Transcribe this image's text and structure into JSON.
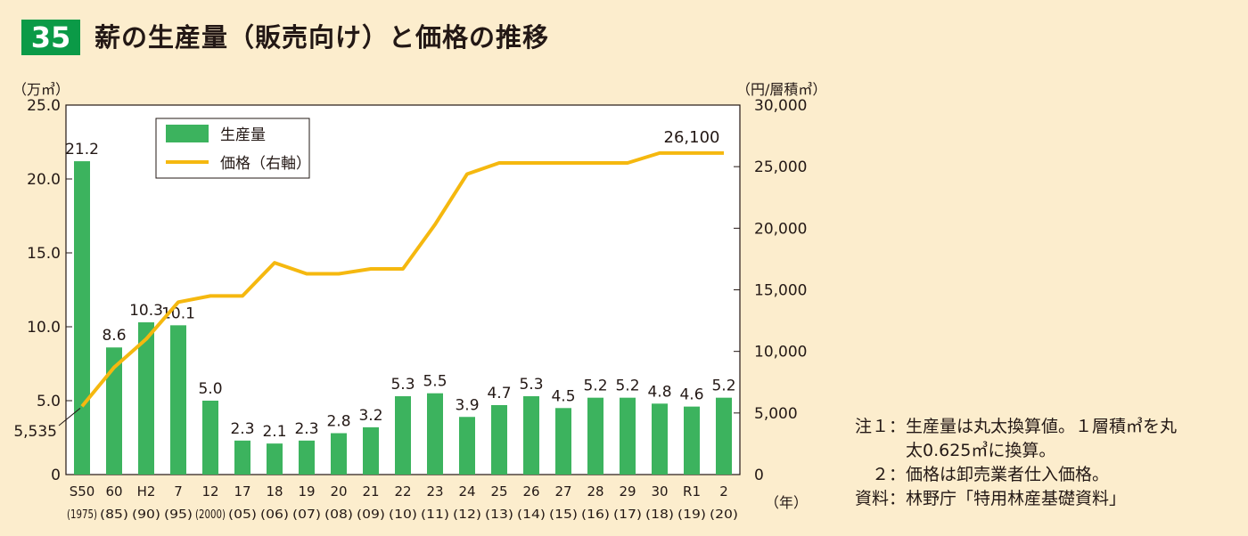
{
  "figure": {
    "number": "35",
    "title": "薪の生産量（販売向け）と価格の推移"
  },
  "chart_data": {
    "type": "bar",
    "categories": [
      "S50",
      "60",
      "H2",
      "7",
      "12",
      "17",
      "18",
      "19",
      "20",
      "21",
      "22",
      "23",
      "24",
      "25",
      "26",
      "27",
      "28",
      "29",
      "30",
      "R1",
      "2"
    ],
    "category_years": [
      "(1975)",
      "(85)",
      "(90)",
      "(95)",
      "(2000)",
      "(05)",
      "(06)",
      "(07)",
      "(08)",
      "(09)",
      "(10)",
      "(11)",
      "(12)",
      "(13)",
      "(14)",
      "(15)",
      "(16)",
      "(17)",
      "(18)",
      "(19)",
      "(20)"
    ],
    "series": [
      {
        "name": "生産量",
        "type": "bar",
        "axis": "left",
        "color": "#3cb35e",
        "values": [
          21.2,
          8.6,
          10.3,
          10.1,
          5.0,
          2.3,
          2.1,
          2.3,
          2.8,
          3.2,
          5.3,
          5.5,
          3.9,
          4.7,
          5.3,
          4.5,
          5.2,
          5.2,
          4.8,
          4.6,
          5.2
        ],
        "labels": [
          "21.2",
          "8.6",
          "10.3",
          "10.1",
          "5.0",
          "2.3",
          "2.1",
          "2.3",
          "2.8",
          "3.2",
          "5.3",
          "5.5",
          "3.9",
          "4.7",
          "5.3",
          "4.5",
          "5.2",
          "5.2",
          "4.8",
          "4.6",
          "5.2"
        ]
      },
      {
        "name": "価格（右軸）",
        "type": "line",
        "axis": "right",
        "color": "#f5b80f",
        "values": [
          5535,
          8700,
          11000,
          14000,
          14500,
          14500,
          17200,
          16300,
          16300,
          16700,
          16700,
          20300,
          24400,
          25300,
          25300,
          25300,
          25300,
          25300,
          26100,
          26100,
          26100
        ],
        "labels": {
          "0": "5,535",
          "19": "26,100"
        }
      }
    ],
    "y_left": {
      "unit": "（万㎥）",
      "ylim": [
        0,
        25
      ],
      "ticks": [
        0,
        5,
        10,
        15,
        20,
        25
      ],
      "tick_labels": [
        "0",
        "5.0",
        "10.0",
        "15.0",
        "20.0",
        "25.0"
      ]
    },
    "y_right": {
      "unit": "（円/層積㎥）",
      "ylim": [
        0,
        30000
      ],
      "ticks": [
        0,
        5000,
        10000,
        15000,
        20000,
        25000,
        30000
      ],
      "tick_labels": [
        "0",
        "5,000",
        "10,000",
        "15,000",
        "20,000",
        "25,000",
        "30,000"
      ]
    },
    "x_unit": "（年）",
    "legend_position": "top-left"
  },
  "notes": [
    {
      "label": "注１：",
      "text": "生産量は丸太換算値。１層積㎥を丸"
    },
    {
      "label": "",
      "text": "太0.625㎥に換算。"
    },
    {
      "label": "２：",
      "text": "価格は卸売業者仕入価格。"
    },
    {
      "label": "資料：",
      "text": "林野庁「特用林産基礎資料」"
    }
  ]
}
